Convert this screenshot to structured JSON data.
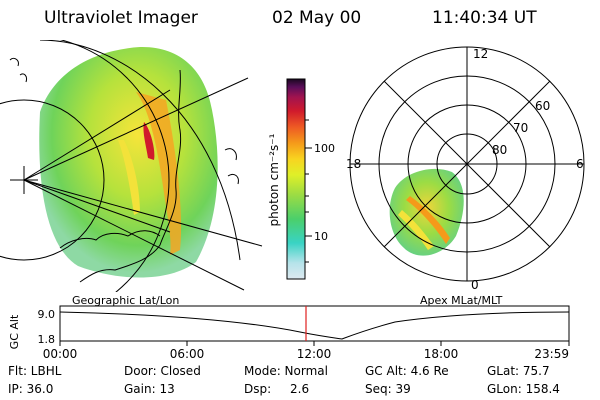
{
  "header": {
    "instrument": "Ultraviolet Imager",
    "date": "02 May 00",
    "time": "11:40:34 UT"
  },
  "colorbar": {
    "unit_label": "photon cm⁻²s⁻¹",
    "ticks": [
      "100",
      "10"
    ],
    "scale": "log",
    "colors": [
      "#dde9f0",
      "#b6e3ea",
      "#39d3c4",
      "#4bcf6b",
      "#9bdc44",
      "#dff028",
      "#f8d420",
      "#f59a1a",
      "#ee5a24",
      "#d01a2c",
      "#a1134f",
      "#5a0e5a",
      "#1a0820"
    ]
  },
  "geo_map": {
    "caption": "Geographic Lat/Lon"
  },
  "polar_plot": {
    "caption": "Apex MLat/MLT",
    "mlt_labels": {
      "top": "12",
      "left": "18",
      "right": "6",
      "bottom": "0"
    },
    "lat_labels": [
      "60",
      "70",
      "80"
    ]
  },
  "altitude_plot": {
    "ylabel": "GC Alt",
    "yticks": [
      "9.0",
      "1.8"
    ],
    "xticks": [
      "00:00",
      "06:00",
      "12:00",
      "18:00",
      "23:59"
    ],
    "current_time_marker": "11:40"
  },
  "footer": {
    "row1": {
      "filter": "Flt: LBHL",
      "door": "Door: Closed",
      "mode": "Mode: Normal",
      "gc_alt": "GC Alt: 4.6 Re",
      "glat": "GLat: 75.7"
    },
    "row2": {
      "ip": "IP: 36.0",
      "gain": "Gain: 13",
      "dsp_label": "Dsp:",
      "dsp_value": "2.6",
      "seq": "Seq: 39",
      "glon": "GLon: 158.4"
    }
  }
}
